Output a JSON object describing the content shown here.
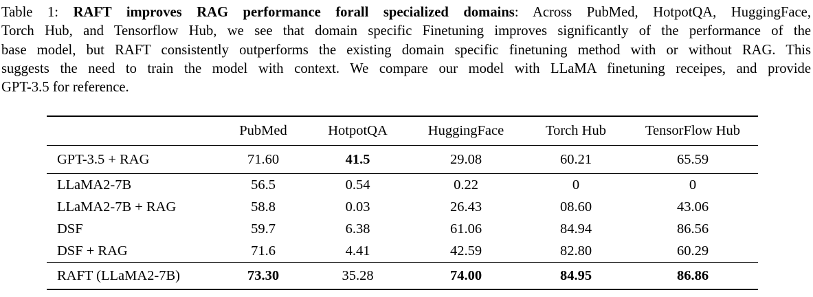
{
  "caption": {
    "line1_pre": "Table 1: ",
    "line1_bold": "RAFT improves RAG performance forall specialized domains",
    "line1_post": ": Across PubMed, HotpotQA, HuggingFace,",
    "line2": "Torch Hub, and Tensorflow Hub, we see that domain specific Finetuning improves significantly of the performance of the",
    "line3": "base model, but RAFT consistently outperforms the existing domain specific finetuning method with or without RAG. This",
    "line4": "suggests the need to train the model with context. We compare our model with LLaMA finetuning receipes, and provide",
    "line5": "GPT-3.5 for reference."
  },
  "table": {
    "header": [
      "PubMed",
      "HotpotQA",
      "HuggingFace",
      "Torch Hub",
      "TensorFlow Hub"
    ],
    "rows": [
      {
        "label": "GPT-3.5 + RAG",
        "values": [
          "71.60",
          "41.5",
          "29.08",
          "60.21",
          "65.59"
        ],
        "bold_values": [
          1
        ],
        "section": 1
      },
      {
        "label": "LLaMA2-7B",
        "values": [
          "56.5",
          "0.54",
          "0.22",
          "0",
          "0"
        ],
        "bold_values": [],
        "section": 2
      },
      {
        "label": "LLaMA2-7B + RAG",
        "values": [
          "58.8",
          "0.03",
          "26.43",
          "08.60",
          "43.06"
        ],
        "bold_values": [],
        "section": 2
      },
      {
        "label": "DSF",
        "values": [
          "59.7",
          "6.38",
          "61.06",
          "84.94",
          "86.56"
        ],
        "bold_values": [],
        "section": 2
      },
      {
        "label": "DSF + RAG",
        "values": [
          "71.6",
          "4.41",
          "42.59",
          "82.80",
          "60.29"
        ],
        "bold_values": [],
        "section": 2
      },
      {
        "label": "RAFT (LLaMA2-7B)",
        "values": [
          "73.30",
          "35.28",
          "74.00",
          "84.95",
          "86.86"
        ],
        "bold_values": [
          0,
          2,
          3,
          4
        ],
        "section": 3
      }
    ]
  },
  "colors": {
    "text": "#000000",
    "background": "#ffffff",
    "rule": "#000000"
  }
}
